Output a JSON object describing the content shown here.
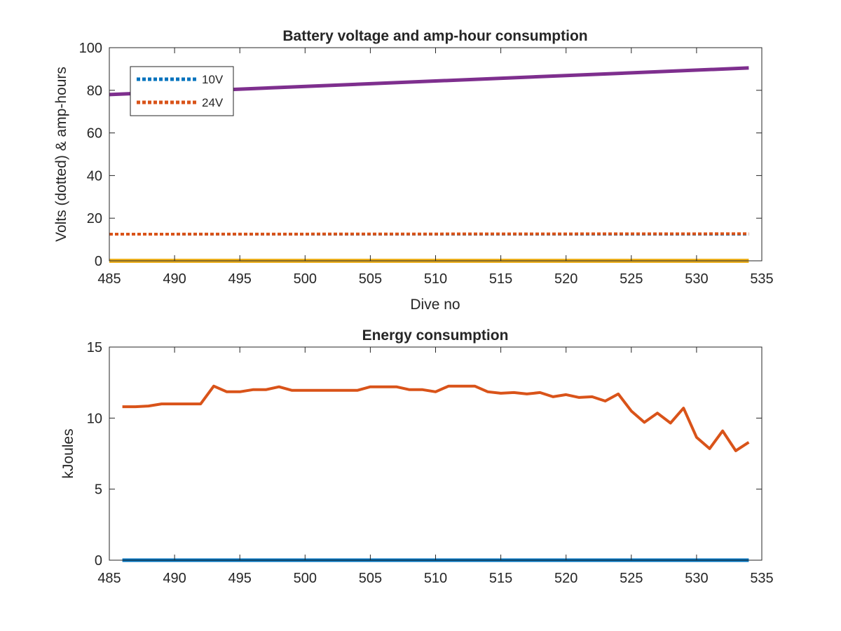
{
  "chart_data": [
    {
      "type": "line",
      "title": "Battery voltage and amp-hour consumption",
      "xlabel": "Dive no",
      "ylabel": "Volts (dotted) & amp-hours",
      "xlim": [
        485,
        535
      ],
      "ylim": [
        0,
        100
      ],
      "xticks": [
        485,
        490,
        495,
        500,
        505,
        510,
        515,
        520,
        525,
        530,
        535
      ],
      "yticks": [
        0,
        20,
        40,
        60,
        80,
        100
      ],
      "legend": {
        "placement": "top-left",
        "entries": [
          "10V",
          "24V"
        ]
      },
      "series": [
        {
          "name": "10V",
          "style": "dotted",
          "color": "#0072BD",
          "x": [
            485,
            534
          ],
          "y": [
            12.5,
            12.5
          ]
        },
        {
          "name": "24V",
          "style": "dotted",
          "color": "#D95319",
          "x": [
            485,
            534
          ],
          "y": [
            12.5,
            12.7
          ]
        },
        {
          "style": "solid",
          "color": "#7E2F8E",
          "x": [
            485,
            534
          ],
          "y": [
            78,
            90.5
          ]
        },
        {
          "style": "solid",
          "color": "#EDB120",
          "x": [
            485,
            534
          ],
          "y": [
            0,
            0
          ]
        }
      ]
    },
    {
      "type": "line",
      "title": "Energy consumption",
      "xlabel": "",
      "ylabel": "kJoules",
      "xlim": [
        485,
        535
      ],
      "ylim": [
        0,
        15
      ],
      "xticks": [
        485,
        490,
        495,
        500,
        505,
        510,
        515,
        520,
        525,
        530,
        535
      ],
      "yticks": [
        0,
        5,
        10,
        15
      ],
      "series": [
        {
          "style": "solid",
          "color": "#D95319",
          "x": [
            486,
            487,
            488,
            489,
            490,
            491,
            492,
            493,
            494,
            495,
            496,
            497,
            498,
            499,
            500,
            501,
            502,
            503,
            504,
            505,
            506,
            507,
            508,
            509,
            510,
            511,
            512,
            513,
            514,
            515,
            516,
            517,
            518,
            519,
            520,
            521,
            522,
            523,
            524,
            525,
            526,
            527,
            528,
            529,
            530,
            531,
            532,
            533,
            534
          ],
          "y": [
            10.8,
            10.8,
            10.85,
            11.0,
            11.0,
            11.0,
            11.0,
            12.25,
            11.85,
            11.85,
            12.0,
            12.0,
            12.2,
            11.95,
            11.95,
            11.95,
            11.95,
            11.95,
            11.95,
            12.2,
            12.2,
            12.2,
            12.0,
            12.0,
            11.85,
            12.25,
            12.25,
            12.25,
            11.85,
            11.75,
            11.8,
            11.7,
            11.8,
            11.5,
            11.65,
            11.45,
            11.5,
            11.2,
            11.7,
            10.5,
            9.7,
            10.35,
            9.65,
            10.7,
            8.65,
            7.85,
            9.1,
            7.7,
            8.3
          ]
        },
        {
          "style": "solid",
          "color": "#0072BD",
          "x": [
            486,
            534
          ],
          "y": [
            0,
            0
          ]
        }
      ]
    }
  ]
}
